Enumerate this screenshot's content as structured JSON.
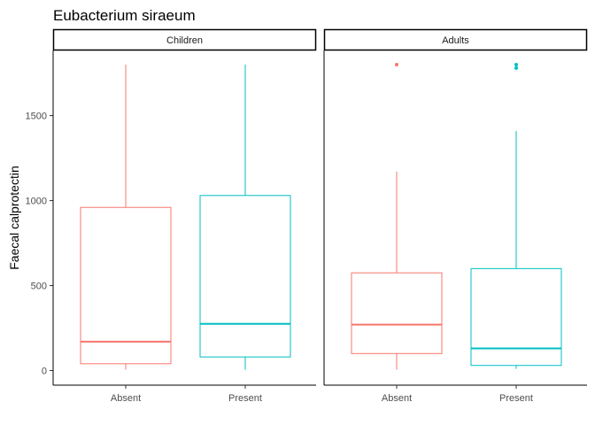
{
  "chart_data": {
    "type": "box",
    "title": "Eubacterium siraeum",
    "xlabel": "",
    "ylabel": "Faecal calprotectin",
    "ylim": [
      0,
      1800
    ],
    "yticks": [
      0,
      500,
      1000,
      1500
    ],
    "categories": [
      "Absent",
      "Present"
    ],
    "colors": {
      "Absent": "#f8766d",
      "Present": "#00bfc4"
    },
    "grid": false,
    "legend": "none",
    "panels": [
      {
        "name": "Children",
        "boxes": [
          {
            "category": "Absent",
            "whisker_low": 5,
            "q1": 40,
            "median": 170,
            "q3": 960,
            "whisker_high": 1800,
            "outliers": []
          },
          {
            "category": "Present",
            "whisker_low": 5,
            "q1": 80,
            "median": 275,
            "q3": 1030,
            "whisker_high": 1800,
            "outliers": []
          }
        ]
      },
      {
        "name": "Adults",
        "boxes": [
          {
            "category": "Absent",
            "whisker_low": 5,
            "q1": 100,
            "median": 270,
            "q3": 575,
            "whisker_high": 1170,
            "outliers": [
              1800
            ]
          },
          {
            "category": "Present",
            "whisker_low": 10,
            "q1": 30,
            "median": 130,
            "q3": 600,
            "whisker_high": 1410,
            "outliers": [
              1780,
              1800
            ]
          }
        ]
      }
    ]
  }
}
